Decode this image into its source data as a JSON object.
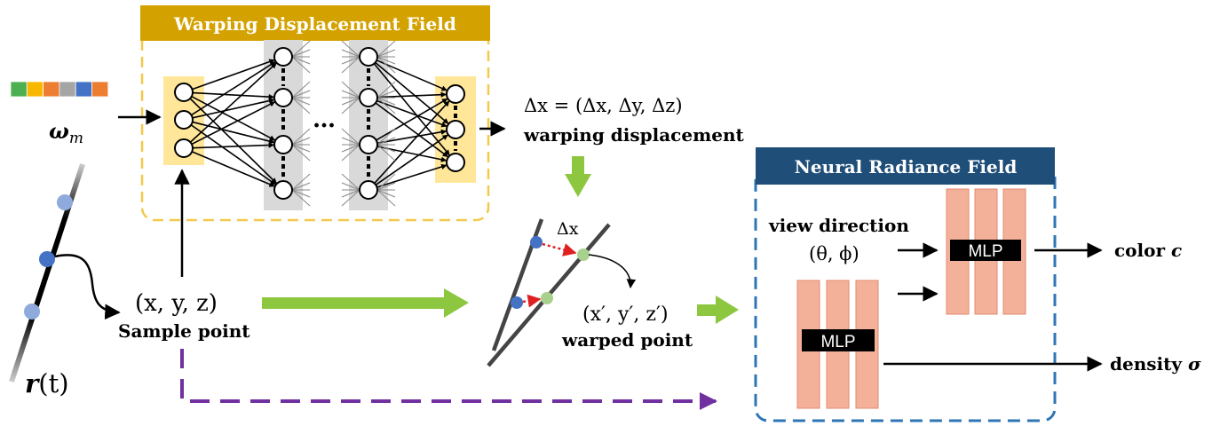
{
  "warp_panel": {
    "title": "Warping Displacement Field",
    "title_bg": "#d4a200",
    "dash_color": "#f2c94c"
  },
  "nerf_panel": {
    "title": "Neural Radiance Field",
    "title_bg": "#1f4e79",
    "dash_color": "#2e75b6"
  },
  "latent": {
    "label_bold": "ω",
    "label_sub": "m",
    "colors": [
      "#4caf50",
      "#f9b800",
      "#ed7d31",
      "#a5a5a5",
      "#4472c4",
      "#ed7d31"
    ]
  },
  "network": {
    "ellipsis": "…"
  },
  "displacement": {
    "formula": "Δx = (Δx, Δy, Δz)",
    "formula_bold": "Δ",
    "label": "warping displacement"
  },
  "ray": {
    "label_bold": "r",
    "label_rest": "(t)"
  },
  "sample": {
    "coords": "(x, y, z)",
    "label": "Sample point"
  },
  "warp_inset": {
    "delta": "Δx"
  },
  "warped": {
    "coords": "(x′, y′, z′)",
    "label": "warped point"
  },
  "view": {
    "label": "view direction",
    "angles": "(θ, ϕ)"
  },
  "mlp": {
    "label_top": "MLP",
    "label_bottom": "MLP"
  },
  "outputs": {
    "color_label": "color ",
    "color_symbol": "c",
    "density_label": "density ",
    "density_symbol": "σ"
  },
  "colors": {
    "green_arrow": "#8dc63f",
    "purple_dash": "#7030a0",
    "mlp_fill": "#f4b199",
    "hidden_band": "#d9d9d9",
    "io_band": "#ffe699",
    "blue_point": "#4472c4",
    "light_blue_point": "#8faadc",
    "green_point": "#a9d18e",
    "red_dot": "#e02020"
  }
}
